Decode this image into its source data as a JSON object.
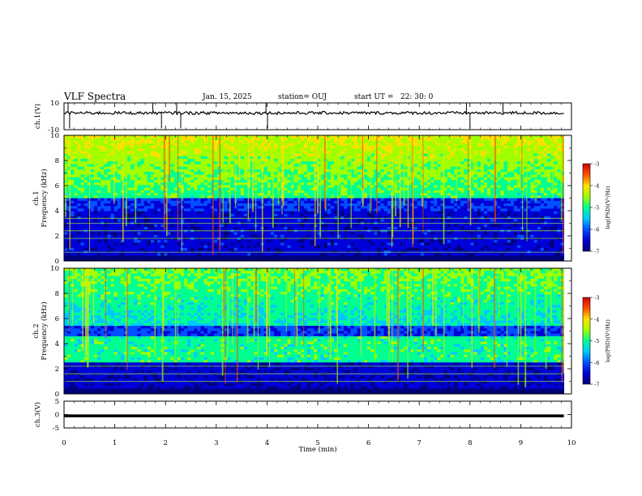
{
  "header": {
    "title": "VLF Spectra",
    "date": "Jan. 15, 2025",
    "station": "station= OUJ",
    "start": "start UT =   22: 30: 0"
  },
  "chart_data": [
    {
      "panel": "ch1_waveform",
      "type": "line",
      "ylabel": "ch.1(V)",
      "ylim": [
        -10,
        10
      ],
      "ytick_labels": [
        "10",
        "-10"
      ],
      "baseline": 2.5,
      "spike_times_min": [
        0.08,
        0.11,
        1.75,
        1.92,
        2.22,
        2.3,
        3.98,
        4.01,
        7.93,
        8.0,
        8.65
      ]
    },
    {
      "panel": "ch1_spectrogram",
      "type": "heatmap",
      "ylabel": "ch.1 Frequency (kHz)",
      "ylim": [
        0,
        10
      ],
      "ytick_labels": [
        "0",
        "2",
        "4",
        "6",
        "8",
        "10"
      ],
      "colorbar": {
        "label": "log(PSD)(V²/Hz)",
        "range": [
          -7,
          -3
        ],
        "tick_labels": [
          "-3",
          "-4",
          "-5",
          "-6",
          "-7"
        ]
      }
    },
    {
      "panel": "ch2_spectrogram",
      "type": "heatmap",
      "ylabel": "ch.2 Frequency (kHz)",
      "ylim": [
        0,
        10
      ],
      "ytick_labels": [
        "0",
        "2",
        "4",
        "6",
        "8",
        "10"
      ],
      "colorbar": {
        "label": "log(PSD)(V²/Hz)",
        "range": [
          -7,
          -3
        ],
        "tick_labels": [
          "-3",
          "-4",
          "-5",
          "-6",
          "-7"
        ]
      }
    },
    {
      "panel": "ch3_waveform",
      "type": "line",
      "ylabel": "ch.3(V)",
      "ylim": [
        -5,
        5
      ],
      "ytick_labels": [
        "5",
        "0",
        "-5"
      ],
      "baseline": -0.5
    }
  ],
  "xaxis": {
    "label": "Time (min)",
    "range": [
      0,
      10
    ],
    "data_end": 9.85,
    "tick_labels": [
      "0",
      "1",
      "2",
      "3",
      "4",
      "5",
      "6",
      "7",
      "8",
      "9",
      "10"
    ]
  },
  "colors": {
    "colormap": [
      "#00007a",
      "#0000d8",
      "#0050ff",
      "#00c8ff",
      "#00ff90",
      "#a0ff00",
      "#ffe000",
      "#ff5000",
      "#d00000"
    ]
  }
}
